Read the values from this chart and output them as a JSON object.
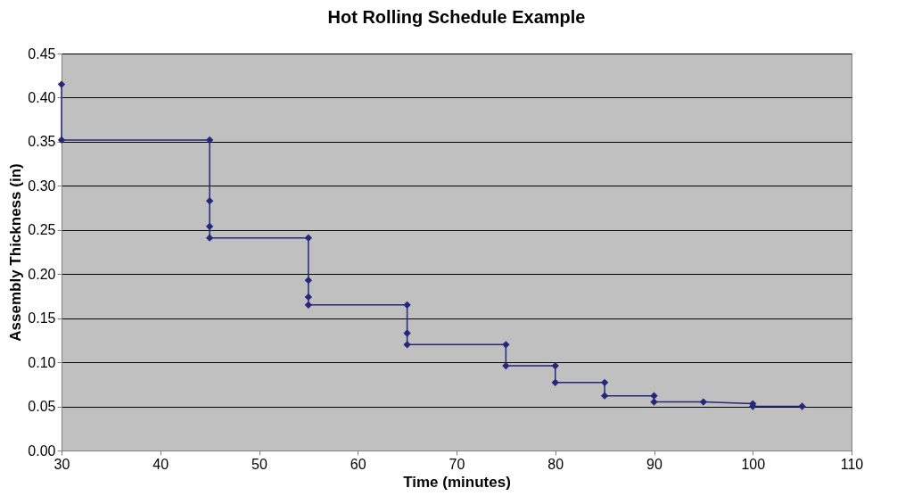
{
  "chart_data": {
    "type": "line",
    "title": "Hot Rolling Schedule Example",
    "xlabel": "Time (minutes)",
    "ylabel": "Assembly Thickness (in)",
    "xlim": [
      30,
      110
    ],
    "xticks": [
      30,
      40,
      50,
      60,
      70,
      80,
      90,
      100,
      110
    ],
    "ylim": [
      0,
      0.45
    ],
    "yticks": [
      {
        "value": 0,
        "label": "0.00"
      },
      {
        "value": 0.05,
        "label": "0.05"
      },
      {
        "value": 0.1,
        "label": "0.10"
      },
      {
        "value": 0.15,
        "label": "0.15"
      },
      {
        "value": 0.2,
        "label": "0.20"
      },
      {
        "value": 0.25,
        "label": "0.25"
      },
      {
        "value": 0.3,
        "label": "0.30"
      },
      {
        "value": 0.35,
        "label": "0.35"
      },
      {
        "value": 0.4,
        "label": "0.40"
      },
      {
        "value": 0.45,
        "label": "0.45"
      }
    ],
    "grid": "y",
    "legend": false,
    "marker": "diamond",
    "line_style": "solid",
    "series": [
      {
        "color": "#26267a",
        "x": [
          30,
          30,
          45,
          45,
          45,
          45,
          55,
          55,
          55,
          55,
          65,
          65,
          65,
          75,
          75,
          80,
          80,
          85,
          85,
          90,
          90,
          95,
          100,
          100,
          105
        ],
        "values": [
          0.415,
          0.352,
          0.352,
          0.283,
          0.254,
          0.241,
          0.241,
          0.193,
          0.174,
          0.165,
          0.165,
          0.133,
          0.12,
          0.12,
          0.096,
          0.096,
          0.077,
          0.077,
          0.062,
          0.062,
          0.055,
          0.055,
          0.053,
          0.05,
          0.05
        ]
      }
    ]
  }
}
